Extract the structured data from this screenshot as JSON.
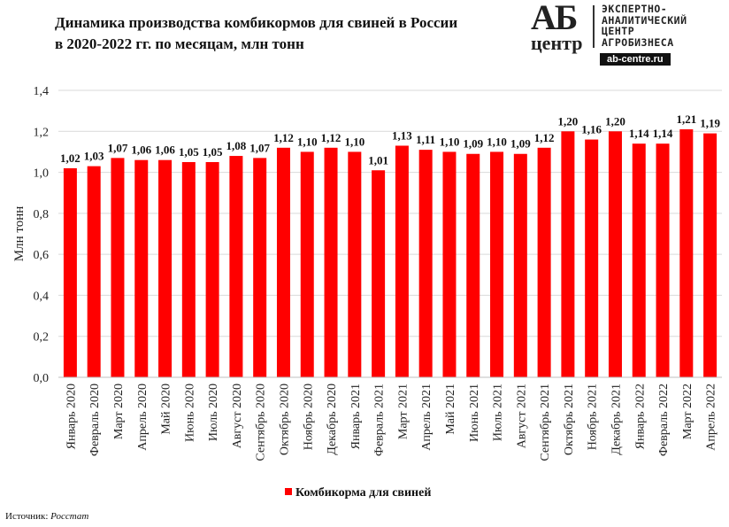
{
  "title_line1": "Динамика производства комбикормов для свиней в России",
  "title_line2": "в 2020-2022 гг. по месяцам, млн тонн",
  "logo": {
    "big": "АБ",
    "small": "центр",
    "lines": [
      "ЭКСПЕРТНО-",
      "АНАЛИТИЧЕСКИЙ",
      "ЦЕНТР",
      "АГРОБИЗНЕСА"
    ],
    "site": "ab-centre.ru"
  },
  "source_label": "Источник:",
  "source_value": "Росстат",
  "chart_data": {
    "type": "bar",
    "title": "Динамика производства комбикормов для свиней в России в 2020-2022 гг. по месяцам, млн тонн",
    "ylabel": "Млн тонн",
    "xlabel": "",
    "ylim": [
      0,
      1.4
    ],
    "yticks": [
      "0,0",
      "0,2",
      "0,4",
      "0,6",
      "0,8",
      "1,0",
      "1,2",
      "1,4"
    ],
    "grid": true,
    "legend": "bottom",
    "color": "#ff0000",
    "series": [
      {
        "name": "Комбикорма для свиней",
        "values": [
          1.02,
          1.03,
          1.07,
          1.06,
          1.06,
          1.05,
          1.05,
          1.08,
          1.07,
          1.12,
          1.1,
          1.12,
          1.1,
          1.01,
          1.13,
          1.11,
          1.1,
          1.09,
          1.1,
          1.09,
          1.12,
          1.2,
          1.16,
          1.2,
          1.14,
          1.14,
          1.21,
          1.19
        ]
      }
    ],
    "data_labels": [
      "1,02",
      "1,03",
      "1,07",
      "1,06",
      "1,06",
      "1,05",
      "1,05",
      "1,08",
      "1,07",
      "1,12",
      "1,10",
      "1,12",
      "1,10",
      "1,01",
      "1,13",
      "1,11",
      "1,10",
      "1,09",
      "1,10",
      "1,09",
      "1,12",
      "1,20",
      "1,16",
      "1,20",
      "1,14",
      "1,14",
      "1,21",
      "1,19"
    ],
    "categories": [
      "Январь 2020",
      "Февраль 2020",
      "Март 2020",
      "Апрель 2020",
      "Май 2020",
      "Июнь 2020",
      "Июль 2020",
      "Август 2020",
      "Сентябрь 2020",
      "Октябрь 2020",
      "Ноябрь 2020",
      "Декабрь 2020",
      "Январь 2021",
      "Февраль 2021",
      "Март 2021",
      "Апрель 2021",
      "Май 2021",
      "Июнь 2021",
      "Июль 2021",
      "Август 2021",
      "Сентябрь 2021",
      "Октябрь 2021",
      "Ноябрь 2021",
      "Декабрь 2021",
      "Январь 2022",
      "Февраль 2022",
      "Март 2022",
      "Апрель 2022"
    ]
  }
}
